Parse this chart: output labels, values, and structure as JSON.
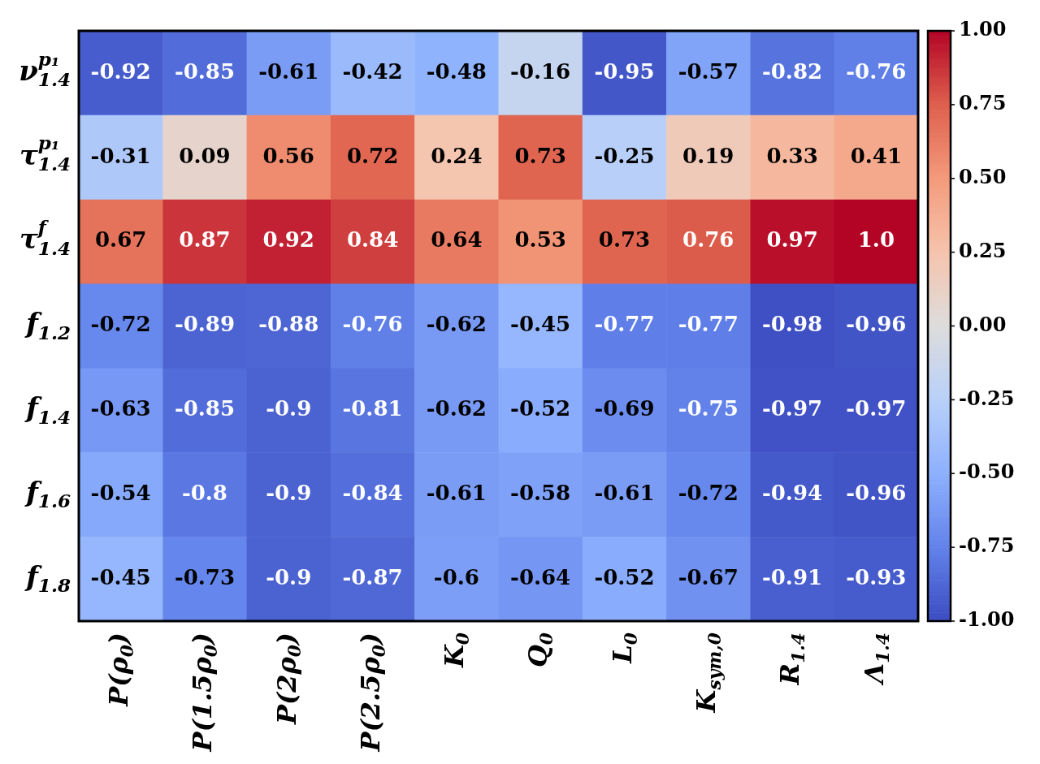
{
  "chart_data": {
    "type": "heatmap",
    "categories": [
      "P(ρ$_{0}$)",
      "P(1.5ρ$_{0}$)",
      "P(2ρ$_{0}$)",
      "P(2.5ρ$_{0}$)",
      "K$_{0}$",
      "Q$_{0}$",
      "L$_{0}$",
      "K$_{sym,0}$",
      "R$_{1.4}$",
      "Λ$_{1.4}$"
    ],
    "y_categories": [
      "ν$_{1.4}$$^{p₁}$",
      "τ$_{1.4}$$^{p₁}$",
      "τ$_{1.4}$$^{f}$",
      "f$_{1.2}$",
      "f$_{1.4}$",
      "f$_{1.6}$",
      "f$_{1.8}$"
    ],
    "cells": [
      [
        -0.92,
        -0.85,
        -0.61,
        -0.42,
        -0.48,
        -0.16,
        -0.95,
        -0.57,
        -0.82,
        -0.76
      ],
      [
        -0.31,
        0.09,
        0.56,
        0.72,
        0.24,
        0.73,
        -0.25,
        0.19,
        0.33,
        0.41
      ],
      [
        0.67,
        0.87,
        0.92,
        0.84,
        0.64,
        0.53,
        0.73,
        0.76,
        0.97,
        1.0
      ],
      [
        -0.72,
        -0.89,
        -0.88,
        -0.76,
        -0.62,
        -0.45,
        -0.77,
        -0.77,
        -0.98,
        -0.96
      ],
      [
        -0.63,
        -0.85,
        -0.9,
        -0.81,
        -0.62,
        -0.52,
        -0.69,
        -0.75,
        -0.97,
        -0.97
      ],
      [
        -0.54,
        -0.8,
        -0.9,
        -0.84,
        -0.61,
        -0.58,
        -0.61,
        -0.72,
        -0.94,
        -0.96
      ],
      [
        -0.45,
        -0.73,
        -0.9,
        -0.87,
        -0.6,
        -0.64,
        -0.52,
        -0.67,
        -0.91,
        -0.93
      ]
    ],
    "cell_labels": [
      [
        "-0.92",
        "-0.85",
        "-0.61",
        "-0.42",
        "-0.48",
        "-0.16",
        "-0.95",
        "-0.57",
        "-0.82",
        "-0.76"
      ],
      [
        "-0.31",
        "0.09",
        "0.56",
        "0.72",
        "0.24",
        "0.73",
        "-0.25",
        "0.19",
        "0.33",
        "0.41"
      ],
      [
        "0.67",
        "0.87",
        "0.92",
        "0.84",
        "0.64",
        "0.53",
        "0.73",
        "0.76",
        "0.97",
        "1.0"
      ],
      [
        "-0.72",
        "-0.89",
        "-0.88",
        "-0.76",
        "-0.62",
        "-0.45",
        "-0.77",
        "-0.77",
        "-0.98",
        "-0.96"
      ],
      [
        "-0.63",
        "-0.85",
        "-0.9",
        "-0.81",
        "-0.62",
        "-0.52",
        "-0.69",
        "-0.75",
        "-0.97",
        "-0.97"
      ],
      [
        "-0.54",
        "-0.8",
        "-0.9",
        "-0.84",
        "-0.61",
        "-0.58",
        "-0.61",
        "-0.72",
        "-0.94",
        "-0.96"
      ],
      [
        "-0.45",
        "-0.73",
        "-0.9",
        "-0.87",
        "-0.6",
        "-0.64",
        "-0.52",
        "-0.67",
        "-0.91",
        "-0.93"
      ]
    ],
    "clim": [
      -1,
      1
    ],
    "cticks": [
      {
        "value": -1,
        "label": "-1.00"
      },
      {
        "value": -0.75,
        "label": "-0.75"
      },
      {
        "value": -0.5,
        "label": "-0.50"
      },
      {
        "value": -0.25,
        "label": "-0.25"
      },
      {
        "value": 0,
        "label": "0.00"
      },
      {
        "value": 0.25,
        "label": "0.25"
      },
      {
        "value": 0.5,
        "label": "0.50"
      },
      {
        "value": 0.75,
        "label": "0.75"
      },
      {
        "value": 1,
        "label": "1.00"
      }
    ]
  }
}
